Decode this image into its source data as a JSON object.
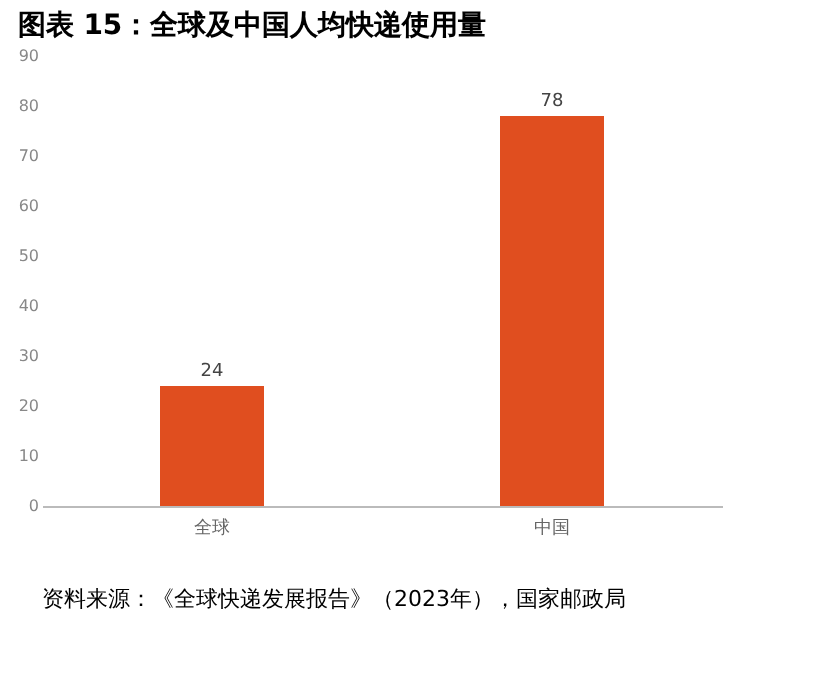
{
  "chart_data": {
    "type": "bar",
    "title": "图表 15：全球及中国人均快递使用量",
    "categories": [
      "全球",
      "中国"
    ],
    "values": [
      24,
      78
    ],
    "color": "#e04e1f",
    "ylim": [
      0,
      90
    ],
    "yticks": [
      0,
      10,
      20,
      30,
      40,
      50,
      60,
      70,
      80,
      90
    ],
    "data_labels": true,
    "grid": false,
    "annotations": [
      "资料来源：《全球快递发展报告》（2023年），国家邮政局"
    ]
  }
}
